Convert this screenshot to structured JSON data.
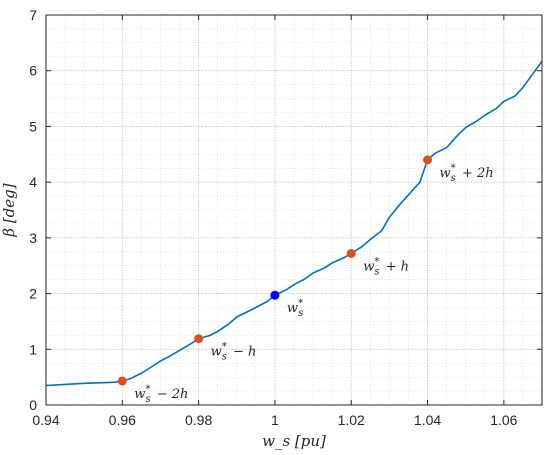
{
  "chart_data": {
    "type": "line",
    "xlabel": "w_s [pu]",
    "ylabel": "β [deg]",
    "xlim": [
      0.94,
      1.07
    ],
    "ylim": [
      0,
      7
    ],
    "x_ticks": [
      0.94,
      0.96,
      0.98,
      1.0,
      1.02,
      1.04,
      1.06
    ],
    "x_tick_labels": [
      "0.94",
      "0.96",
      "0.98",
      "1",
      "1.02",
      "1.04",
      "1.06"
    ],
    "y_ticks": [
      0,
      1,
      2,
      3,
      4,
      5,
      6,
      7
    ],
    "y_tick_labels": [
      "0",
      "1",
      "2",
      "3",
      "4",
      "5",
      "6",
      "7"
    ],
    "grid": true,
    "minor_grid": true,
    "series": [
      {
        "color": "#0072BD",
        "x": [
          0.94,
          0.945,
          0.95,
          0.955,
          0.958,
          0.96,
          0.962,
          0.965,
          0.968,
          0.97,
          0.972,
          0.975,
          0.978,
          0.98,
          0.983,
          0.985,
          0.988,
          0.99,
          0.993,
          0.995,
          0.998,
          1.0,
          1.003,
          1.005,
          1.008,
          1.01,
          1.013,
          1.015,
          1.018,
          1.02,
          1.023,
          1.025,
          1.028,
          1.03,
          1.033,
          1.035,
          1.038,
          1.04,
          1.042,
          1.045,
          1.048,
          1.05,
          1.053,
          1.055,
          1.058,
          1.06,
          1.063,
          1.065,
          1.068,
          1.07
        ],
        "y": [
          0.35,
          0.37,
          0.39,
          0.4,
          0.41,
          0.43,
          0.47,
          0.57,
          0.7,
          0.79,
          0.86,
          0.98,
          1.1,
          1.19,
          1.25,
          1.32,
          1.46,
          1.58,
          1.68,
          1.75,
          1.86,
          1.97,
          2.07,
          2.16,
          2.27,
          2.37,
          2.46,
          2.55,
          2.64,
          2.72,
          2.85,
          2.97,
          3.13,
          3.37,
          3.62,
          3.77,
          4.0,
          4.4,
          4.52,
          4.62,
          4.85,
          4.98,
          5.1,
          5.2,
          5.32,
          5.45,
          5.55,
          5.7,
          5.98,
          6.17
        ]
      }
    ],
    "markers": [
      {
        "x": 0.96,
        "y": 0.43,
        "color": "#D95319",
        "label": "w_s^* − 2h"
      },
      {
        "x": 0.98,
        "y": 1.19,
        "color": "#D95319",
        "label": "w_s^* − h"
      },
      {
        "x": 1.0,
        "y": 1.97,
        "color": "#0000FF",
        "label": "w_s^*"
      },
      {
        "x": 1.02,
        "y": 2.72,
        "color": "#D95319",
        "label": "w_s^* + h"
      },
      {
        "x": 1.04,
        "y": 4.4,
        "color": "#D95319",
        "label": "w_s^* + 2h"
      }
    ]
  }
}
